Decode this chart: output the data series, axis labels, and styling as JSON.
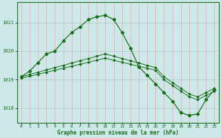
{
  "title": "Graphe pression niveau de la mer (hPa)",
  "bg_color": "#cce8e8",
  "grid_color_v": "#ff9999",
  "grid_color_h": "#aacccc",
  "line_color": "#1a6e1a",
  "marker_color": "#1a6e1a",
  "xlim": [
    -0.5,
    23.5
  ],
  "ylim": [
    1017.5,
    1021.7
  ],
  "yticks": [
    1018,
    1019,
    1020,
    1021
  ],
  "xticks": [
    0,
    1,
    2,
    3,
    4,
    5,
    6,
    7,
    8,
    9,
    10,
    11,
    12,
    13,
    14,
    15,
    16,
    17,
    18,
    19,
    20,
    21,
    22,
    23
  ],
  "series1_x": [
    0,
    1,
    2,
    3,
    4,
    5,
    6,
    7,
    8,
    9,
    10,
    11,
    12,
    13,
    14,
    15,
    16,
    17,
    18,
    19,
    20,
    21,
    22,
    23
  ],
  "series1_y": [
    1019.1,
    1019.3,
    1019.6,
    1019.9,
    1020.0,
    1020.35,
    1020.65,
    1020.85,
    1021.1,
    1021.2,
    1021.25,
    1021.1,
    1020.65,
    1020.1,
    1019.45,
    1019.15,
    1018.85,
    1018.55,
    1018.25,
    1017.85,
    1017.75,
    1017.8,
    1018.3,
    1018.65
  ],
  "series2_x": [
    0,
    1,
    2,
    3,
    4,
    5,
    6,
    7,
    8,
    9,
    10,
    11,
    12,
    13,
    14,
    15,
    16,
    17,
    18,
    19,
    20,
    21,
    22,
    23
  ],
  "series2_y": [
    1019.1,
    1019.18,
    1019.26,
    1019.34,
    1019.42,
    1019.5,
    1019.58,
    1019.66,
    1019.74,
    1019.82,
    1019.9,
    1019.82,
    1019.74,
    1019.66,
    1019.58,
    1019.5,
    1019.42,
    1019.1,
    1018.9,
    1018.7,
    1018.5,
    1018.4,
    1018.55,
    1018.7
  ],
  "series3_x": [
    0,
    1,
    2,
    3,
    4,
    5,
    6,
    7,
    8,
    9,
    10,
    11,
    12,
    13,
    14,
    15,
    16,
    17,
    18,
    19,
    20,
    21,
    22,
    23
  ],
  "series3_y": [
    1019.05,
    1019.12,
    1019.19,
    1019.26,
    1019.33,
    1019.4,
    1019.47,
    1019.54,
    1019.61,
    1019.68,
    1019.75,
    1019.68,
    1019.61,
    1019.54,
    1019.47,
    1019.4,
    1019.33,
    1019.0,
    1018.8,
    1018.6,
    1018.4,
    1018.3,
    1018.45,
    1018.6
  ]
}
